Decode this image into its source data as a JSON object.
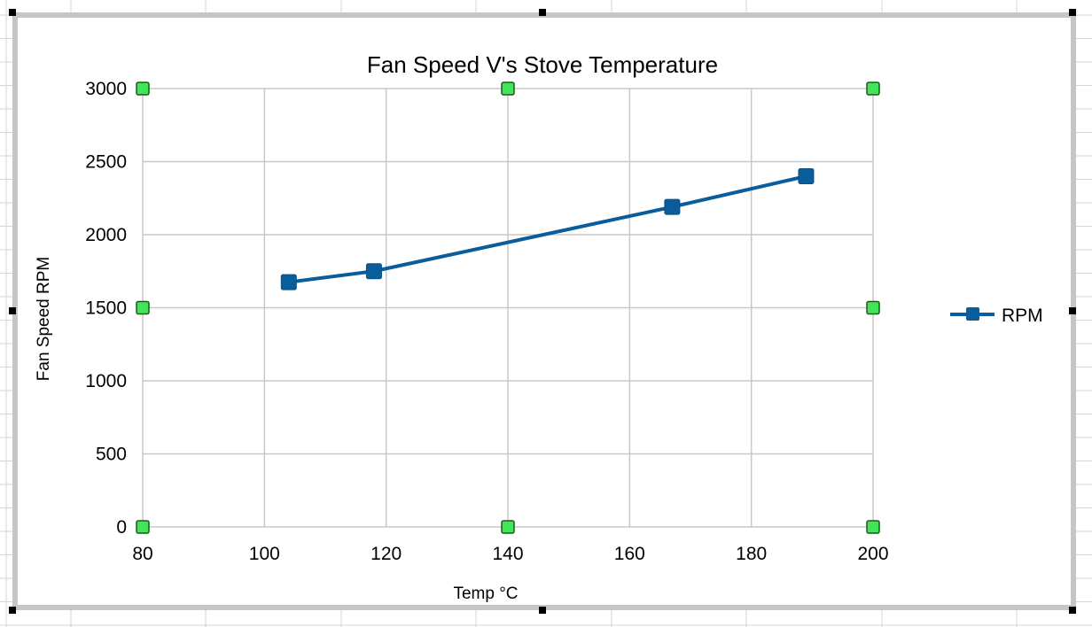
{
  "colors": {
    "series": "#0a5d9b",
    "grid": "#c8c8c8",
    "handle_fill": "#44e45a",
    "handle_stroke": "#1a5a1a",
    "cell_grid": "#d6d6d6",
    "frame": "#c6c6c6"
  },
  "chart_data": {
    "type": "line",
    "title": "Fan Speed V's Stove Temperature",
    "xlabel": "Temp °C",
    "ylabel": "Fan Speed RPM",
    "xlim": [
      80,
      200
    ],
    "ylim": [
      0,
      3000
    ],
    "xticks": [
      80,
      100,
      120,
      140,
      160,
      180,
      200
    ],
    "yticks": [
      0,
      500,
      1000,
      1500,
      2000,
      2500,
      3000
    ],
    "xtick_labels": [
      "80",
      "100",
      "120",
      "140",
      "160",
      "180",
      "200"
    ],
    "ytick_labels": [
      "0",
      "500",
      "1000",
      "1500",
      "2000",
      "2500",
      "3000"
    ],
    "grid": true,
    "legend_position": "right",
    "series": [
      {
        "name": "RPM",
        "marker": "square",
        "x": [
          104,
          118,
          167,
          189
        ],
        "y": [
          1675,
          1750,
          2190,
          2400
        ]
      }
    ]
  }
}
